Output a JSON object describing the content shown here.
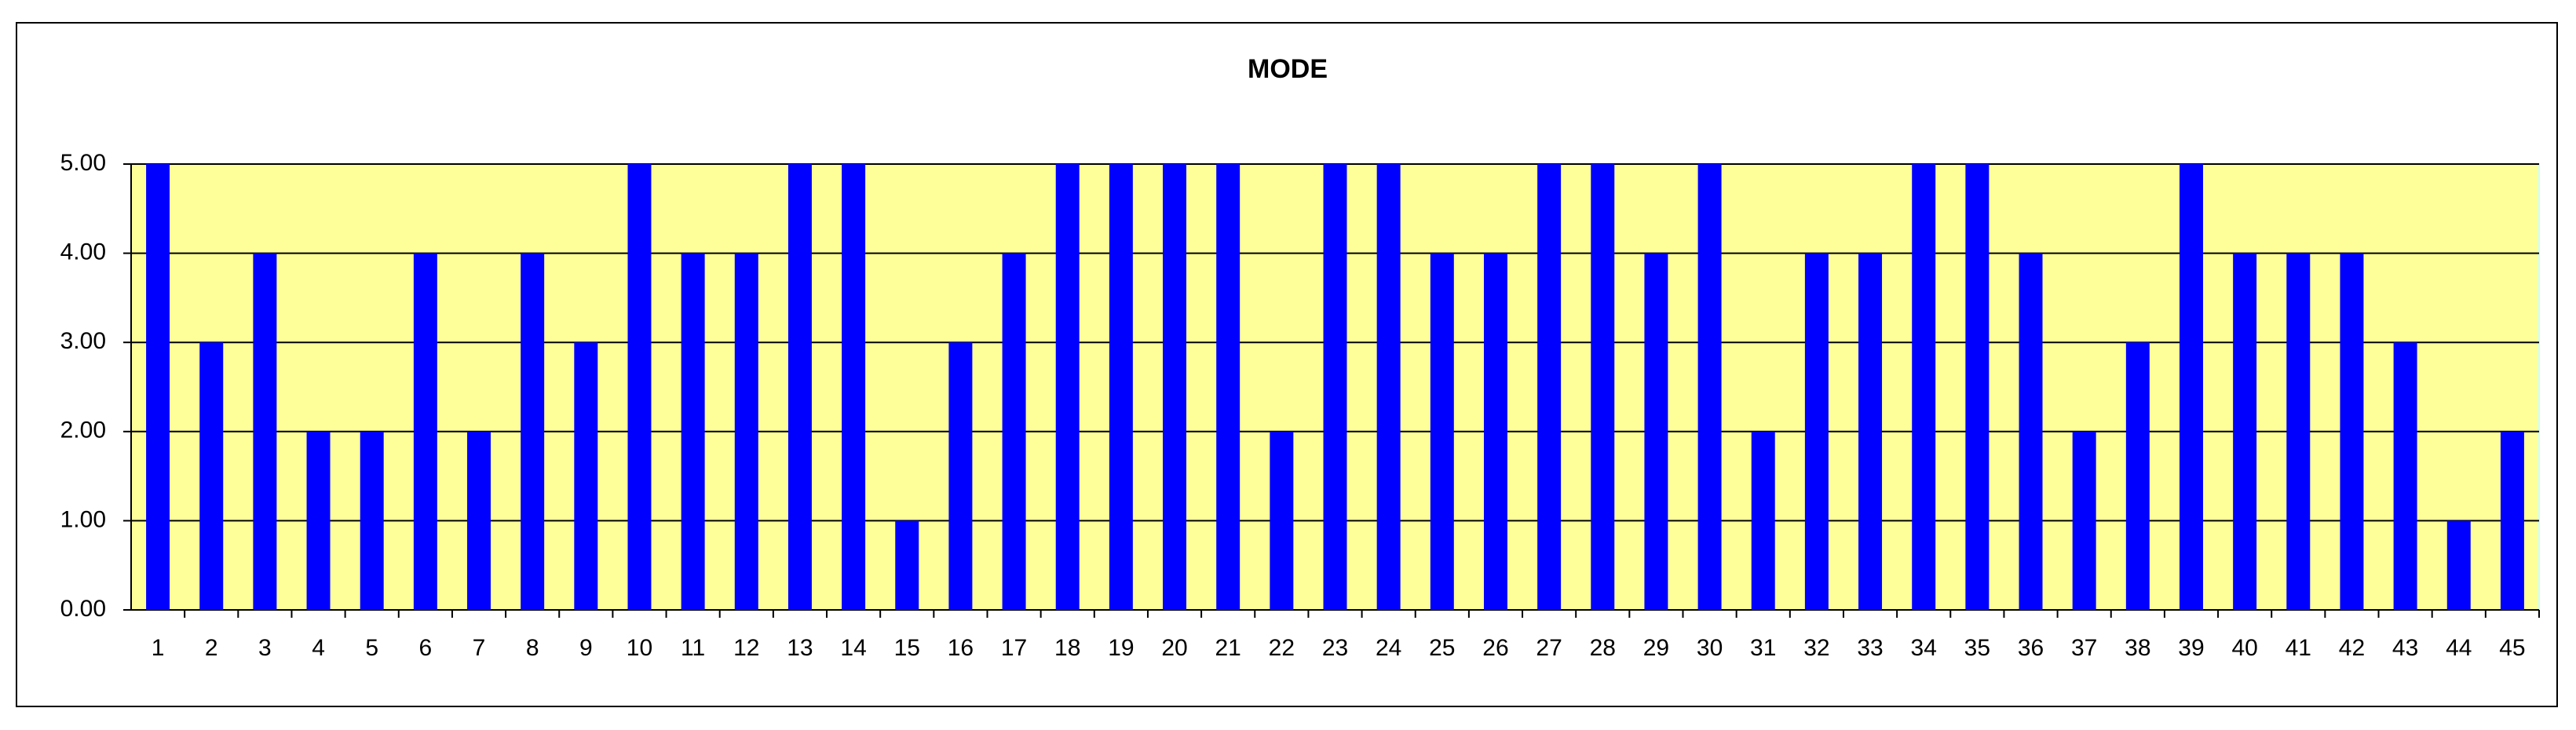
{
  "chart_data": {
    "type": "bar",
    "title": "MODE",
    "categories": [
      "1",
      "2",
      "3",
      "4",
      "5",
      "6",
      "7",
      "8",
      "9",
      "10",
      "11",
      "12",
      "13",
      "14",
      "15",
      "16",
      "17",
      "18",
      "19",
      "20",
      "21",
      "22",
      "23",
      "24",
      "25",
      "26",
      "27",
      "28",
      "29",
      "30",
      "31",
      "32",
      "33",
      "34",
      "35",
      "36",
      "37",
      "38",
      "39",
      "40",
      "41",
      "42",
      "43",
      "44",
      "45"
    ],
    "values": [
      5,
      3,
      4,
      2,
      2,
      4,
      2,
      4,
      3,
      5,
      4,
      4,
      5,
      5,
      1,
      3,
      4,
      5,
      5,
      5,
      5,
      2,
      5,
      5,
      4,
      4,
      5,
      5,
      4,
      5,
      2,
      4,
      4,
      5,
      5,
      4,
      2,
      3,
      5,
      4,
      4,
      4,
      3,
      1,
      2
    ],
    "color": "#0000ff",
    "background": "#ffff99",
    "ylim": [
      0,
      5
    ],
    "yticks": [
      {
        "value": 0,
        "label": "0.00"
      },
      {
        "value": 1,
        "label": "1.00"
      },
      {
        "value": 2,
        "label": "2.00"
      },
      {
        "value": 3,
        "label": "3.00"
      },
      {
        "value": 4,
        "label": "4.00"
      },
      {
        "value": 5,
        "label": "5.00"
      }
    ],
    "grid": true
  }
}
